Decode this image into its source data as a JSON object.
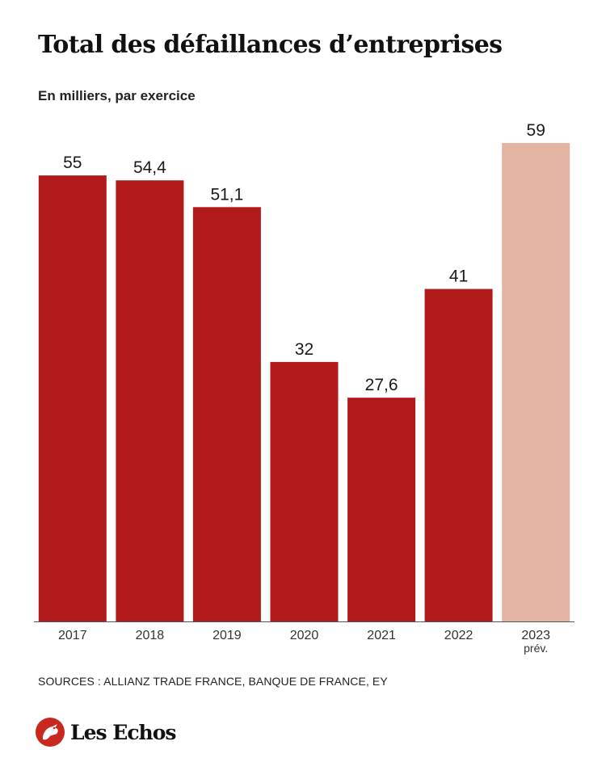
{
  "title": "Total des défaillances d’entreprises",
  "subtitle": "En milliers, par exercice",
  "sources": "SOURCES : ALLIANZ TRADE FRANCE, BANQUE DE FRANCE, EY",
  "brand": {
    "name": "Les Echos",
    "logo_icon": "griffin-logo-icon"
  },
  "colors": {
    "actual": "#b01a1b",
    "forecast": "#e3b4a1",
    "baseline": "#555555",
    "logo": "#c9281e"
  },
  "chart_data": {
    "type": "bar",
    "title": "Total des défaillances d’entreprises",
    "subtitle": "En milliers, par exercice",
    "categories": [
      "2017",
      "2018",
      "2019",
      "2020",
      "2021",
      "2022",
      "2023"
    ],
    "category_notes": [
      "",
      "",
      "",
      "",
      "",
      "",
      "prév."
    ],
    "values": [
      55,
      54.4,
      51.1,
      32,
      27.6,
      41,
      59
    ],
    "value_labels": [
      "55",
      "54,4",
      "51,1",
      "32",
      "27,6",
      "41",
      "59"
    ],
    "forecast": [
      false,
      false,
      false,
      false,
      false,
      false,
      true
    ],
    "ylim": [
      0,
      59
    ],
    "grid": false,
    "legend": "none"
  }
}
